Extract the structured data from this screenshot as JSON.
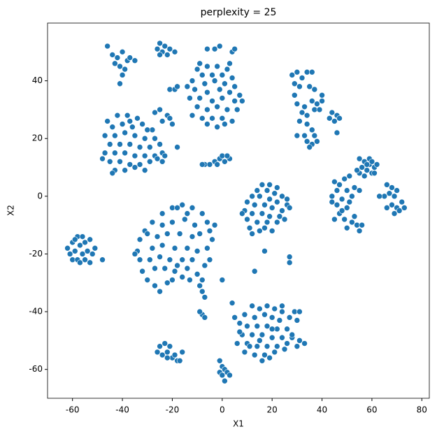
{
  "chart_data": {
    "type": "scatter",
    "title": "perplexity = 25",
    "x_label": "X1",
    "y_label": "X2",
    "color": "#1f77b4",
    "xlim": [
      -70,
      83
    ],
    "ylim": [
      -70,
      60
    ],
    "xticks": [
      -60,
      -40,
      -20,
      0,
      20,
      40,
      60,
      80
    ],
    "yticks": [
      -60,
      -40,
      -20,
      0,
      20,
      40
    ],
    "x": [
      -46,
      -44,
      -42,
      -40,
      -38,
      -41,
      -43,
      -39,
      -37,
      -40,
      -41,
      -35,
      -25,
      -23,
      -21,
      -26,
      -24,
      -19,
      -22,
      -25,
      -10,
      -6,
      -2,
      2,
      -8,
      -4,
      0,
      4,
      -12,
      -7,
      -3,
      1,
      5,
      -11,
      -6,
      -1,
      3,
      7,
      -13,
      -9,
      -4,
      0,
      5,
      -10,
      -6,
      -2,
      2,
      6,
      -12,
      -8,
      -4,
      0,
      4,
      -6,
      -2,
      1,
      -14,
      8,
      -9,
      3,
      -6,
      -3,
      -1,
      4,
      5,
      -46,
      -42,
      -38,
      -34,
      -44,
      -40,
      -36,
      -32,
      -28,
      -47,
      -43,
      -39,
      -35,
      -31,
      -27,
      -45,
      -41,
      -37,
      -33,
      -29,
      -25,
      -47,
      -43,
      -39,
      -35,
      -31,
      -27,
      -24,
      -45,
      -41,
      -37,
      -33,
      -29,
      -26,
      -43,
      -39,
      -35,
      -31,
      -44,
      -48,
      -37,
      -30,
      -23,
      -24,
      -18,
      -27,
      -25,
      -22,
      -21,
      -20,
      -24,
      -21,
      -19,
      -18,
      -7,
      -5,
      -3,
      -1,
      0,
      1,
      3,
      -2,
      2,
      -8,
      28,
      30,
      32,
      34,
      36,
      29,
      31,
      35,
      37,
      29,
      30,
      33,
      36,
      38,
      40,
      32,
      34,
      37,
      39,
      31,
      34,
      36,
      33,
      30,
      37,
      34,
      36,
      38,
      35,
      40,
      44,
      46,
      45,
      47,
      43,
      46,
      55,
      57,
      59,
      61,
      56,
      58,
      60,
      55,
      57,
      62,
      59,
      61,
      54,
      58,
      60,
      45,
      47,
      49,
      51,
      46,
      50,
      53,
      55,
      44,
      48,
      52,
      46,
      50,
      47,
      45,
      49,
      52,
      54,
      50,
      55,
      53,
      51,
      44,
      48,
      56,
      66,
      68,
      70,
      65,
      67,
      69,
      72,
      68,
      70,
      66,
      71,
      73,
      69,
      63,
      16,
      19,
      22,
      14,
      18,
      21,
      24,
      12,
      15,
      19,
      22,
      26,
      10,
      13,
      17,
      20,
      24,
      9,
      12,
      16,
      19,
      23,
      27,
      10,
      14,
      18,
      22,
      11,
      15,
      12,
      25,
      8,
      20,
      17,
      26,
      -20,
      -16,
      -12,
      -24,
      -8,
      -28,
      -6,
      -31,
      -5,
      -33,
      -4,
      -34,
      -6,
      -33,
      -5,
      -32,
      -7,
      -30,
      -10,
      -27,
      -16,
      -22,
      -25,
      -19,
      -24,
      -20,
      -15,
      -11,
      -26,
      -22,
      -17,
      -12,
      -9,
      -28,
      -24,
      -19,
      -14,
      -10,
      -29,
      -25,
      -21,
      -16,
      -12,
      -27,
      -23,
      -18,
      -14,
      -20,
      -13,
      -30,
      -35,
      -8,
      -3,
      -18,
      -14,
      -62,
      -60,
      -58,
      -61,
      -59,
      -57,
      -55,
      -60,
      -58,
      -56,
      -54,
      -57,
      -55,
      -53,
      -52,
      -51,
      -53,
      -59,
      -56,
      -48,
      12,
      15,
      18,
      21,
      24,
      29,
      31,
      9,
      13,
      17,
      20,
      23,
      27,
      30,
      7,
      10,
      14,
      18,
      22,
      26,
      8,
      12,
      16,
      20,
      24,
      28,
      31,
      6,
      10,
      14,
      18,
      22,
      26,
      30,
      33,
      9,
      13,
      17,
      21,
      16,
      19,
      25,
      28,
      4,
      11,
      7,
      24,
      5,
      15,
      20,
      -25,
      -23,
      -21,
      -26,
      -24,
      -22,
      -20,
      -18,
      -16,
      -19,
      -17,
      -22,
      -1,
      0,
      1,
      -1,
      0,
      1,
      2,
      3,
      -8,
      -9,
      -7,
      -8,
      -7,
      -9,
      13,
      27,
      27,
      17,
      0
    ],
    "values": [
      52,
      49,
      48,
      50,
      47,
      45,
      46,
      44,
      48,
      42,
      39,
      47,
      53,
      52,
      51,
      51,
      50,
      50,
      49,
      49,
      44,
      45,
      45,
      44,
      42,
      42,
      42,
      41,
      40,
      39,
      40,
      39,
      38,
      37,
      36,
      37,
      36,
      35,
      34,
      34,
      33,
      34,
      33,
      31,
      30,
      31,
      30,
      30,
      28,
      27,
      27,
      27,
      26,
      25,
      24,
      25,
      38,
      33,
      46,
      46,
      51,
      51,
      52,
      50,
      51,
      26,
      28,
      28,
      27,
      24,
      25,
      24,
      25,
      23,
      21,
      21,
      22,
      21,
      20,
      20,
      18,
      18,
      18,
      17,
      17,
      18,
      15,
      15,
      15,
      14,
      14,
      14,
      15,
      12,
      12,
      11,
      11,
      12,
      13,
      9,
      9,
      10,
      9,
      8,
      13,
      26,
      23,
      14,
      12,
      17,
      29,
      30,
      28,
      27,
      25,
      26,
      37,
      37,
      38,
      11,
      11,
      12,
      13,
      14,
      12,
      13,
      11,
      14,
      11,
      42,
      43,
      41,
      43,
      43,
      39,
      38,
      38,
      37,
      35,
      32,
      31,
      33,
      32,
      33,
      29,
      28,
      30,
      30,
      26,
      25,
      23,
      21,
      21,
      21,
      19,
      18,
      19,
      17,
      35,
      29,
      28,
      26,
      27,
      27,
      22,
      13,
      12,
      11,
      10,
      10,
      9,
      8,
      8,
      7,
      11,
      13,
      8,
      9,
      11,
      12,
      5,
      4,
      6,
      7,
      2,
      2,
      3,
      2,
      0,
      -1,
      0,
      -3,
      -4,
      -6,
      -8,
      -8,
      -9,
      -10,
      -11,
      -12,
      -7,
      -2,
      -2,
      -5,
      -10,
      4,
      3,
      2,
      0,
      1,
      0,
      -2,
      -3,
      -4,
      -4,
      -5,
      -4,
      -6,
      0,
      4,
      4,
      3,
      2,
      2,
      1,
      0,
      0,
      0,
      -1,
      -2,
      -3,
      -2,
      -3,
      -3,
      -4,
      -5,
      -5,
      -6,
      -6,
      -7,
      -7,
      -4,
      -8,
      -9,
      -9,
      -9,
      -11,
      -12,
      -13,
      -8,
      -6,
      -12,
      -11,
      -1,
      -4,
      -3,
      -4,
      -6,
      -6,
      -9,
      -9,
      -12,
      -12,
      -15,
      -15,
      -19,
      -18,
      -22,
      -22,
      -26,
      -24,
      -29,
      -27,
      -31,
      -28,
      -30,
      -33,
      -26,
      -10,
      -9,
      -8,
      -10,
      -14,
      -13,
      -13,
      -14,
      -13,
      -18,
      -17,
      -18,
      -18,
      -19,
      -22,
      -21,
      -22,
      -22,
      -22,
      -25,
      -25,
      -24,
      -25,
      -29,
      -29,
      -13,
      -20,
      -29,
      -10,
      -4,
      -6,
      -18,
      -16,
      -14,
      -20,
      -19,
      -17,
      -16,
      -22,
      -22,
      -20,
      -19,
      -23,
      -22,
      -23,
      -20,
      -18,
      -15,
      -15,
      -14,
      -22,
      -38,
      -39,
      -38,
      -39,
      -40,
      -40,
      -40,
      -41,
      -42,
      -41,
      -42,
      -43,
      -42,
      -43,
      -44,
      -45,
      -45,
      -45,
      -46,
      -46,
      -48,
      -48,
      -48,
      -49,
      -49,
      -49,
      -50,
      -51,
      -51,
      -52,
      -52,
      -52,
      -51,
      -52,
      -51,
      -54,
      -55,
      -55,
      -54,
      -57,
      -56,
      -53,
      -48,
      -37,
      -52,
      -47,
      -38,
      -42,
      -50,
      -46,
      -52,
      -51,
      -52,
      -54,
      -55,
      -54,
      -56,
      -57,
      -54,
      -55,
      -57,
      -56,
      -57,
      -59,
      -60,
      -61,
      -62,
      -64,
      -61,
      -62,
      -41,
      -40,
      -42,
      -33,
      -35,
      -31,
      -26,
      -21,
      -23,
      -19,
      -29
    ]
  }
}
